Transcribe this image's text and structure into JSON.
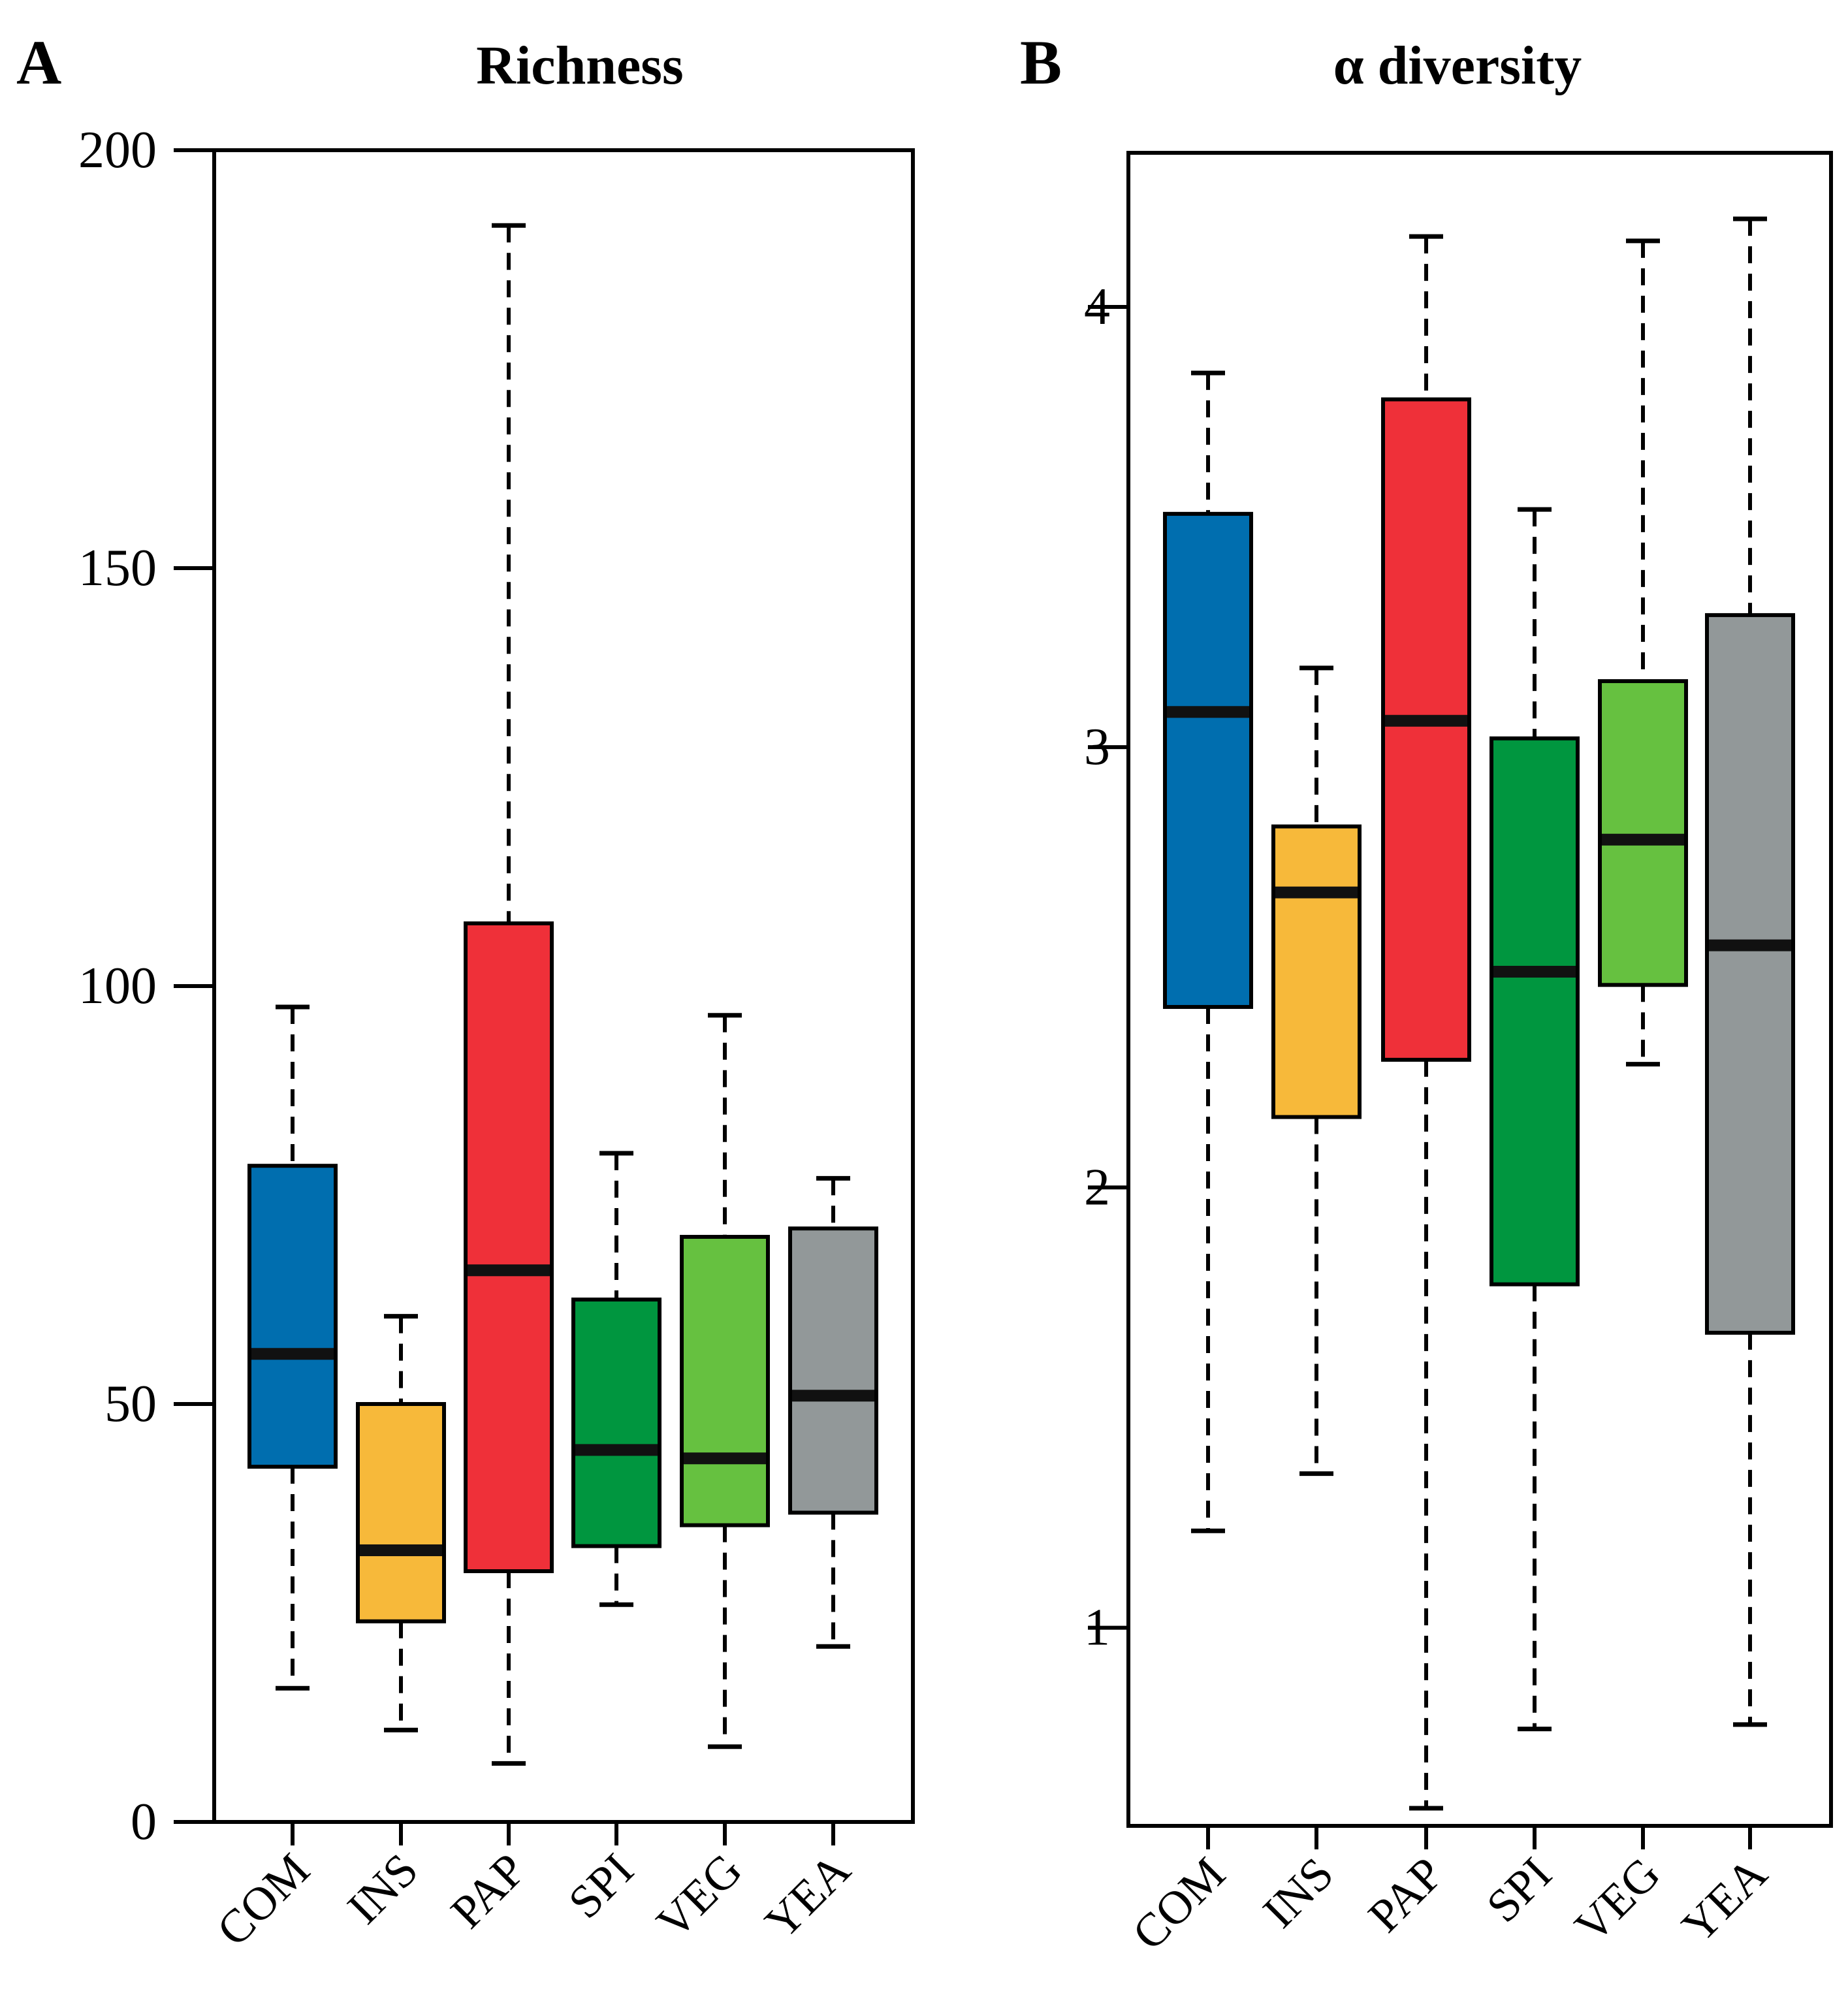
{
  "chart_data": [
    {
      "type": "boxplot",
      "panel": "A",
      "title": "Richness",
      "xlabel": "",
      "ylabel": "",
      "ylim": [
        0,
        200
      ],
      "yticks": [
        0,
        50,
        100,
        150,
        200
      ],
      "categories": [
        "COM",
        "INS",
        "PAP",
        "SPI",
        "VEG",
        "YEA"
      ],
      "colors": [
        "#006EAF",
        "#F7B93A",
        "#EF3039",
        "#00963F",
        "#66C140",
        "#929899"
      ],
      "boxes": [
        {
          "whisker_low": 16,
          "q1": 42.5,
          "median": 56,
          "q3": 78.5,
          "whisker_high": 97.5
        },
        {
          "whisker_low": 11,
          "q1": 24,
          "median": 32.5,
          "q3": 50,
          "whisker_high": 60.5
        },
        {
          "whisker_low": 7,
          "q1": 30,
          "median": 66,
          "q3": 107.5,
          "whisker_high": 191
        },
        {
          "whisker_low": 26,
          "q1": 33,
          "median": 44.5,
          "q3": 62.5,
          "whisker_high": 80
        },
        {
          "whisker_low": 9,
          "q1": 35.5,
          "median": 43.5,
          "q3": 70,
          "whisker_high": 96.5
        },
        {
          "whisker_low": 21,
          "q1": 37,
          "median": 51,
          "q3": 71,
          "whisker_high": 77
        }
      ]
    },
    {
      "type": "boxplot",
      "panel": "B",
      "title": "α diversity",
      "xlabel": "",
      "ylabel": "",
      "ylim": [
        0.55,
        4.35
      ],
      "yticks": [
        1,
        2,
        3,
        4
      ],
      "categories": [
        "COM",
        "INS",
        "PAP",
        "SPI",
        "VEG",
        "YEA"
      ],
      "colors": [
        "#006EAF",
        "#F7B93A",
        "#EF3039",
        "#00963F",
        "#66C140",
        "#929899"
      ],
      "boxes": [
        {
          "whisker_low": 1.22,
          "q1": 2.41,
          "median": 3.08,
          "q3": 3.53,
          "whisker_high": 3.85
        },
        {
          "whisker_low": 1.35,
          "q1": 2.16,
          "median": 2.67,
          "q3": 2.82,
          "whisker_high": 3.18
        },
        {
          "whisker_low": 0.59,
          "q1": 2.29,
          "median": 3.06,
          "q3": 3.79,
          "whisker_high": 4.16
        },
        {
          "whisker_low": 0.77,
          "q1": 1.78,
          "median": 2.49,
          "q3": 3.02,
          "whisker_high": 3.54
        },
        {
          "whisker_low": 2.28,
          "q1": 2.46,
          "median": 2.79,
          "q3": 3.15,
          "whisker_high": 4.15
        },
        {
          "whisker_low": 0.78,
          "q1": 1.67,
          "median": 2.55,
          "q3": 3.3,
          "whisker_high": 4.2
        }
      ]
    }
  ]
}
